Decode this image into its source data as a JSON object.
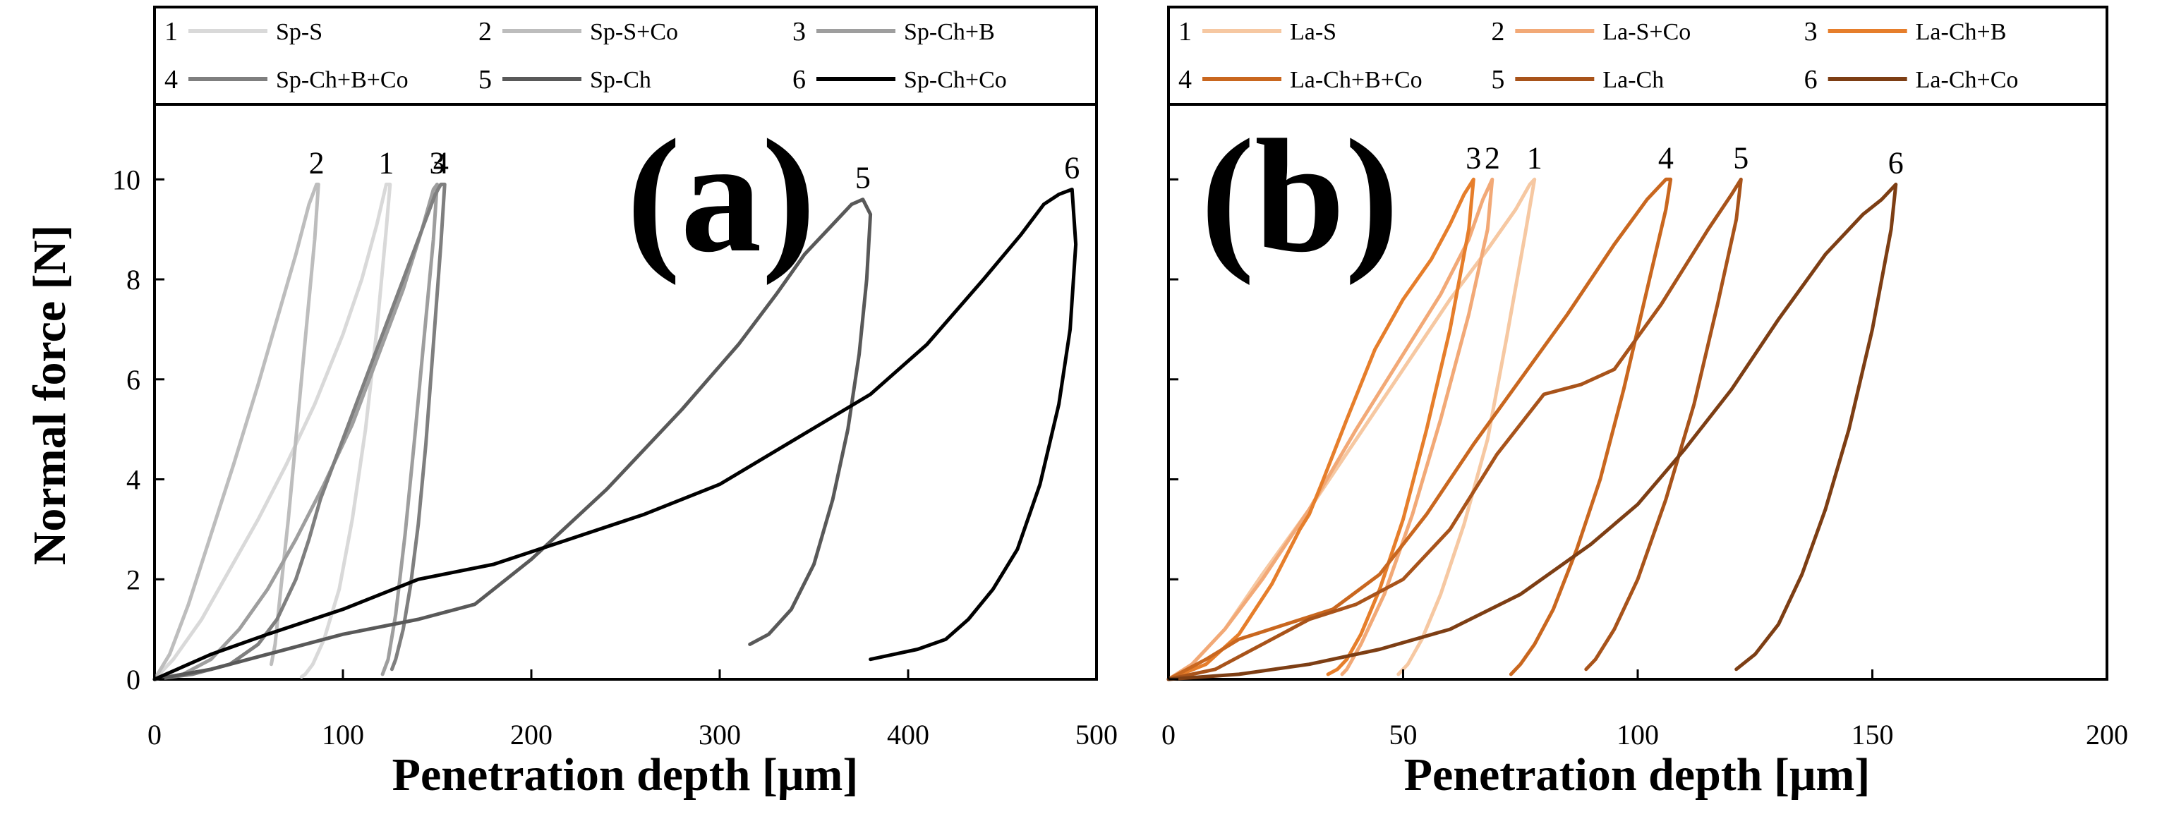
{
  "figure": {
    "ylabel": "Normal force [N]"
  },
  "chart_data": [
    {
      "type": "line",
      "panel_label": "(a)",
      "xlabel": "Penetration depth [μm]",
      "ylabel": "Normal force [N]",
      "xlim": [
        0,
        500
      ],
      "ylim": [
        0,
        11.5
      ],
      "xticks": [
        0,
        100,
        200,
        300,
        400,
        500
      ],
      "yticks": [
        0,
        2,
        4,
        6,
        8,
        10
      ],
      "grid": false,
      "legend": "top",
      "series": [
        {
          "id": "1",
          "name": "Sp-S",
          "color": "#d9d9d9",
          "x": [
            0,
            10,
            25,
            40,
            55,
            70,
            85,
            100,
            110,
            118,
            123,
            125,
            123,
            118,
            112,
            105,
            98,
            90,
            84,
            80,
            78
          ],
          "y": [
            0,
            0.4,
            1.2,
            2.2,
            3.2,
            4.3,
            5.5,
            6.9,
            8.0,
            9.1,
            9.9,
            9.9,
            9.0,
            7.0,
            5.0,
            3.2,
            1.8,
            0.8,
            0.3,
            0.1,
            0.05
          ]
        },
        {
          "id": "2",
          "name": "Sp-S+Co",
          "color": "#bdbdbd",
          "x": [
            0,
            8,
            18,
            30,
            42,
            55,
            65,
            75,
            82,
            86,
            87,
            85,
            80,
            75,
            71,
            67,
            64,
            62
          ],
          "y": [
            0,
            0.5,
            1.5,
            2.9,
            4.3,
            5.9,
            7.2,
            8.5,
            9.5,
            9.9,
            9.9,
            8.8,
            6.8,
            4.8,
            3.2,
            1.8,
            0.7,
            0.3
          ]
        },
        {
          "id": "3",
          "name": "Sp-Ch+B",
          "color": "#9e9e9e",
          "x": [
            0,
            15,
            30,
            45,
            60,
            75,
            90,
            105,
            120,
            132,
            142,
            148,
            150,
            148,
            143,
            138,
            133,
            128,
            124,
            121
          ],
          "y": [
            0,
            0.1,
            0.4,
            1.0,
            1.8,
            2.8,
            3.9,
            5.1,
            6.6,
            7.8,
            9.0,
            9.8,
            9.9,
            8.8,
            6.8,
            4.8,
            2.9,
            1.3,
            0.4,
            0.1
          ]
        },
        {
          "id": "4",
          "name": "Sp-Ch+B+Co",
          "color": "#7f7f7f",
          "x": [
            0,
            20,
            40,
            55,
            65,
            75,
            82,
            88,
            95,
            105,
            115,
            125,
            135,
            143,
            149,
            152,
            154,
            152,
            148,
            144,
            140,
            136,
            132,
            128,
            126
          ],
          "y": [
            0,
            0.1,
            0.3,
            0.7,
            1.2,
            2.0,
            2.8,
            3.6,
            4.3,
            5.3,
            6.3,
            7.3,
            8.3,
            9.1,
            9.7,
            9.9,
            9.9,
            8.7,
            6.7,
            4.7,
            3.1,
            1.9,
            1.0,
            0.4,
            0.2
          ]
        },
        {
          "id": "5",
          "name": "Sp-Ch",
          "color": "#595959",
          "x": [
            0,
            30,
            60,
            100,
            140,
            170,
            200,
            240,
            280,
            310,
            330,
            345,
            360,
            370,
            376,
            380,
            378,
            374,
            368,
            360,
            350,
            338,
            326,
            316
          ],
          "y": [
            0,
            0.2,
            0.5,
            0.9,
            1.2,
            1.5,
            2.4,
            3.8,
            5.4,
            6.7,
            7.7,
            8.5,
            9.1,
            9.5,
            9.6,
            9.3,
            8.0,
            6.5,
            5.0,
            3.6,
            2.3,
            1.4,
            0.9,
            0.7
          ]
        },
        {
          "id": "6",
          "name": "Sp-Ch+Co",
          "color": "#000000",
          "x": [
            0,
            30,
            60,
            100,
            140,
            180,
            220,
            260,
            300,
            340,
            380,
            410,
            440,
            460,
            472,
            480,
            487,
            489,
            486,
            480,
            470,
            458,
            445,
            432,
            420,
            405,
            380
          ],
          "y": [
            0,
            0.5,
            0.9,
            1.4,
            2.0,
            2.3,
            2.8,
            3.3,
            3.9,
            4.8,
            5.7,
            6.7,
            8.0,
            8.9,
            9.5,
            9.7,
            9.8,
            8.7,
            7.0,
            5.5,
            3.9,
            2.6,
            1.8,
            1.2,
            0.8,
            0.6,
            0.4
          ]
        }
      ]
    },
    {
      "type": "line",
      "panel_label": "(b)",
      "xlabel": "Penetration depth [μm]",
      "ylabel": "Normal force [N]",
      "xlim": [
        0,
        200
      ],
      "ylim": [
        0,
        11.5
      ],
      "xticks": [
        0,
        50,
        100,
        150,
        200
      ],
      "yticks": [
        0,
        2,
        4,
        6,
        8,
        10
      ],
      "grid": false,
      "legend": "top",
      "series": [
        {
          "id": "1",
          "name": "La-S",
          "color": "#f6c8a2",
          "x": [
            0,
            5,
            12,
            20,
            30,
            40,
            50,
            60,
            68,
            74,
            77,
            78,
            76,
            72,
            68,
            63,
            58,
            54,
            51,
            49
          ],
          "y": [
            0,
            0.3,
            1.0,
            2.1,
            3.4,
            4.8,
            6.2,
            7.6,
            8.6,
            9.4,
            9.9,
            10.0,
            8.9,
            6.8,
            4.8,
            3.1,
            1.7,
            0.8,
            0.3,
            0.1
          ]
        },
        {
          "id": "2",
          "name": "La-S+Co",
          "color": "#f2a977",
          "x": [
            0,
            5,
            12,
            20,
            30,
            40,
            50,
            58,
            64,
            67,
            69,
            68,
            64,
            58,
            52,
            46,
            41,
            38,
            37
          ],
          "y": [
            0,
            0.3,
            1.0,
            2.0,
            3.4,
            5.0,
            6.5,
            7.7,
            8.8,
            9.6,
            10.0,
            9.0,
            7.3,
            5.2,
            3.3,
            1.7,
            0.7,
            0.2,
            0.1
          ]
        },
        {
          "id": "3",
          "name": "La-Ch+B",
          "color": "#e67e2b",
          "x": [
            0,
            8,
            15,
            22,
            28,
            30,
            33,
            38,
            44,
            50,
            56,
            60,
            63,
            65,
            64,
            60,
            55,
            50,
            45,
            41,
            38,
            36,
            34
          ],
          "y": [
            0,
            0.3,
            0.9,
            1.9,
            3.0,
            3.3,
            4.0,
            5.2,
            6.6,
            7.6,
            8.4,
            9.1,
            9.7,
            10.0,
            9.0,
            7.0,
            5.0,
            3.2,
            1.8,
            0.9,
            0.4,
            0.2,
            0.1
          ]
        },
        {
          "id": "4",
          "name": "La-Ch+B+Co",
          "color": "#c9671f",
          "x": [
            0,
            8,
            15,
            25,
            35,
            45,
            55,
            65,
            75,
            85,
            95,
            102,
            106,
            107,
            106,
            102,
            97,
            92,
            87,
            82,
            78,
            75,
            73
          ],
          "y": [
            0,
            0.4,
            0.8,
            1.1,
            1.4,
            2.1,
            3.3,
            4.7,
            6.0,
            7.3,
            8.7,
            9.6,
            10.0,
            10.0,
            9.4,
            7.8,
            5.8,
            4.0,
            2.6,
            1.4,
            0.7,
            0.3,
            0.1
          ]
        },
        {
          "id": "5",
          "name": "La-Ch",
          "color": "#a8531a",
          "x": [
            0,
            10,
            20,
            30,
            40,
            50,
            60,
            70,
            80,
            88,
            95,
            105,
            115,
            120,
            122,
            121,
            117,
            112,
            106,
            100,
            95,
            91,
            89
          ],
          "y": [
            0,
            0.2,
            0.7,
            1.2,
            1.5,
            2.0,
            3.0,
            4.5,
            5.7,
            5.9,
            6.2,
            7.5,
            9.0,
            9.7,
            10.0,
            9.2,
            7.5,
            5.5,
            3.6,
            2.0,
            1.0,
            0.4,
            0.2
          ]
        },
        {
          "id": "6",
          "name": "La-Ch+Co",
          "color": "#7d3e14",
          "x": [
            0,
            15,
            30,
            45,
            60,
            75,
            90,
            100,
            110,
            120,
            130,
            140,
            148,
            152,
            155,
            154,
            150,
            145,
            140,
            135,
            130,
            125,
            121
          ],
          "y": [
            0,
            0.1,
            0.3,
            0.6,
            1.0,
            1.7,
            2.7,
            3.5,
            4.6,
            5.8,
            7.2,
            8.5,
            9.3,
            9.6,
            9.9,
            9.0,
            7.0,
            5.0,
            3.4,
            2.1,
            1.1,
            0.5,
            0.2
          ]
        }
      ]
    }
  ]
}
